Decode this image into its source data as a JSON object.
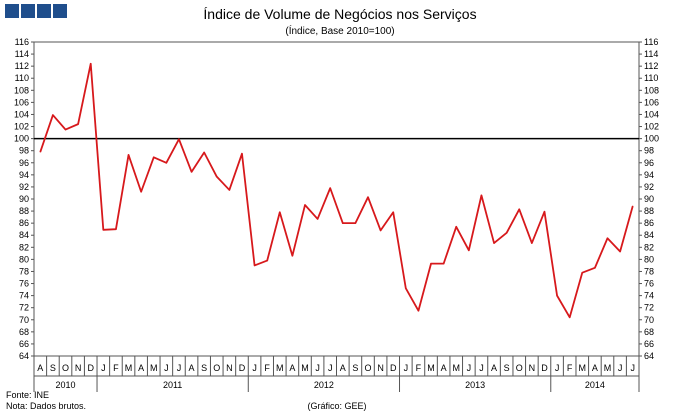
{
  "logo": {
    "name": "INE logo",
    "color": "#1f4e8c"
  },
  "chart_data": {
    "type": "line",
    "title": "Índice de Volume de Negócios nos Serviços",
    "subtitle": "(Índice, Base 2010=100)",
    "ylim": [
      64,
      116
    ],
    "ytick_step": 2,
    "reference_line": 100,
    "line_color": "#d7191c",
    "month_labels": [
      "A",
      "S",
      "O",
      "N",
      "D",
      "J",
      "F",
      "M",
      "A",
      "M",
      "J",
      "J",
      "A",
      "S",
      "O",
      "N",
      "D",
      "J",
      "F",
      "M",
      "A",
      "M",
      "J",
      "J",
      "A",
      "S",
      "O",
      "N",
      "D",
      "J",
      "F",
      "M",
      "A",
      "M",
      "J",
      "J",
      "A",
      "S",
      "O",
      "N",
      "D",
      "J",
      "F",
      "M",
      "A",
      "M",
      "J",
      "J"
    ],
    "years": [
      {
        "label": "2010",
        "start": 0,
        "count": 5
      },
      {
        "label": "2011",
        "start": 5,
        "count": 12
      },
      {
        "label": "2012",
        "start": 17,
        "count": 12
      },
      {
        "label": "2013",
        "start": 29,
        "count": 12
      },
      {
        "label": "2014",
        "start": 41,
        "count": 7
      }
    ],
    "series": [
      {
        "name": "Índice de Volume de Negócios nos Serviços",
        "values": [
          97.8,
          103.9,
          101.5,
          102.4,
          112.4,
          84.9,
          85.0,
          97.3,
          91.2,
          96.9,
          96.0,
          99.9,
          94.5,
          97.7,
          93.7,
          91.5,
          97.5,
          79.0,
          79.8,
          87.8,
          80.6,
          89.0,
          86.7,
          91.8,
          86.0,
          86.0,
          90.3,
          84.8,
          87.8,
          75.2,
          71.5,
          79.3,
          79.3,
          85.4,
          81.5,
          90.6,
          82.7,
          84.4,
          88.3,
          82.7,
          87.9,
          74.0,
          70.4,
          77.8,
          78.6,
          83.5,
          81.3,
          88.8
        ]
      }
    ]
  },
  "footer": {
    "source": "Fonte: INE",
    "note": "Nota: Dados brutos.",
    "credit": "(Gráfico: GEE)"
  }
}
